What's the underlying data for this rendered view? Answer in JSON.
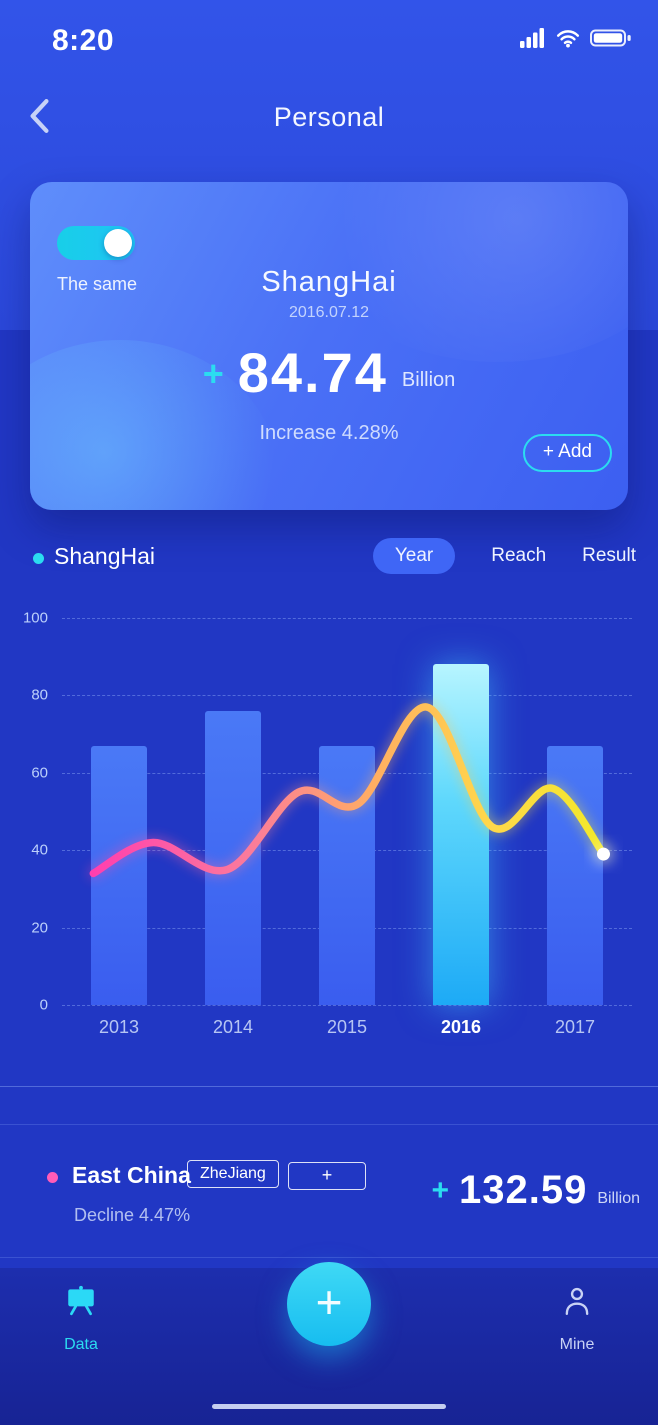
{
  "status_bar": {
    "time": "8:20"
  },
  "header": {
    "title": "Personal",
    "back_icon": "chevron-left"
  },
  "summary_card": {
    "toggle_label": "The same",
    "toggle_on": true,
    "city": "ShangHai",
    "date": "2016.07.12",
    "plus_sign": "+",
    "amount": "84.74",
    "unit": "Billion",
    "change_text": "Increase 4.28%",
    "add_button_label": "+ Add"
  },
  "chart_section": {
    "legend_label": "ShangHai",
    "tabs": [
      {
        "label": "Year",
        "active": true
      },
      {
        "label": "Reach",
        "active": false
      },
      {
        "label": "Result",
        "active": false
      }
    ]
  },
  "chart_data": {
    "type": "bar+line",
    "categories": [
      "2013",
      "2014",
      "2015",
      "2016",
      "2017"
    ],
    "bar_values": [
      67,
      76,
      67,
      88,
      67
    ],
    "highlighted_category": "2016",
    "ylim": [
      0,
      100
    ],
    "yticks": [
      0,
      20,
      40,
      60,
      80,
      100
    ],
    "grid": "horizontal-dashed",
    "legend_position": "top-left",
    "line_points": [
      {
        "x": 0.055,
        "v": 34
      },
      {
        "x": 0.16,
        "v": 42
      },
      {
        "x": 0.29,
        "v": 35
      },
      {
        "x": 0.415,
        "v": 55
      },
      {
        "x": 0.52,
        "v": 52
      },
      {
        "x": 0.64,
        "v": 77
      },
      {
        "x": 0.755,
        "v": 46
      },
      {
        "x": 0.86,
        "v": 56
      },
      {
        "x": 0.95,
        "v": 39
      }
    ],
    "line_gradient": [
      {
        "offset": "0%",
        "color": "#ff3fae"
      },
      {
        "offset": "30%",
        "color": "#fb7a9c"
      },
      {
        "offset": "55%",
        "color": "#ffae62"
      },
      {
        "offset": "78%",
        "color": "#ffd84a"
      },
      {
        "offset": "100%",
        "color": "#f2e928"
      }
    ]
  },
  "region_row": {
    "name": "East China",
    "tag_label": "ZheJiang",
    "add_button_label": "+",
    "change_text": "Decline 4.47%",
    "plus_sign": "+",
    "amount": "132.59",
    "unit": "Billion"
  },
  "nav": {
    "items": [
      {
        "label": "Data",
        "icon": "presentation-board-icon",
        "active": true
      },
      {
        "label": "Mine",
        "icon": "person-icon",
        "active": false
      }
    ],
    "fab_label": "+"
  },
  "colors": {
    "accent_cyan": "#2bdcf0",
    "accent_pink": "#ff5cb8",
    "bar": "#3a5def",
    "bar_highlight_top": "#b7f5ff",
    "bar_highlight_bottom": "#1daaf6",
    "tab_pill": "#3f66f6"
  }
}
